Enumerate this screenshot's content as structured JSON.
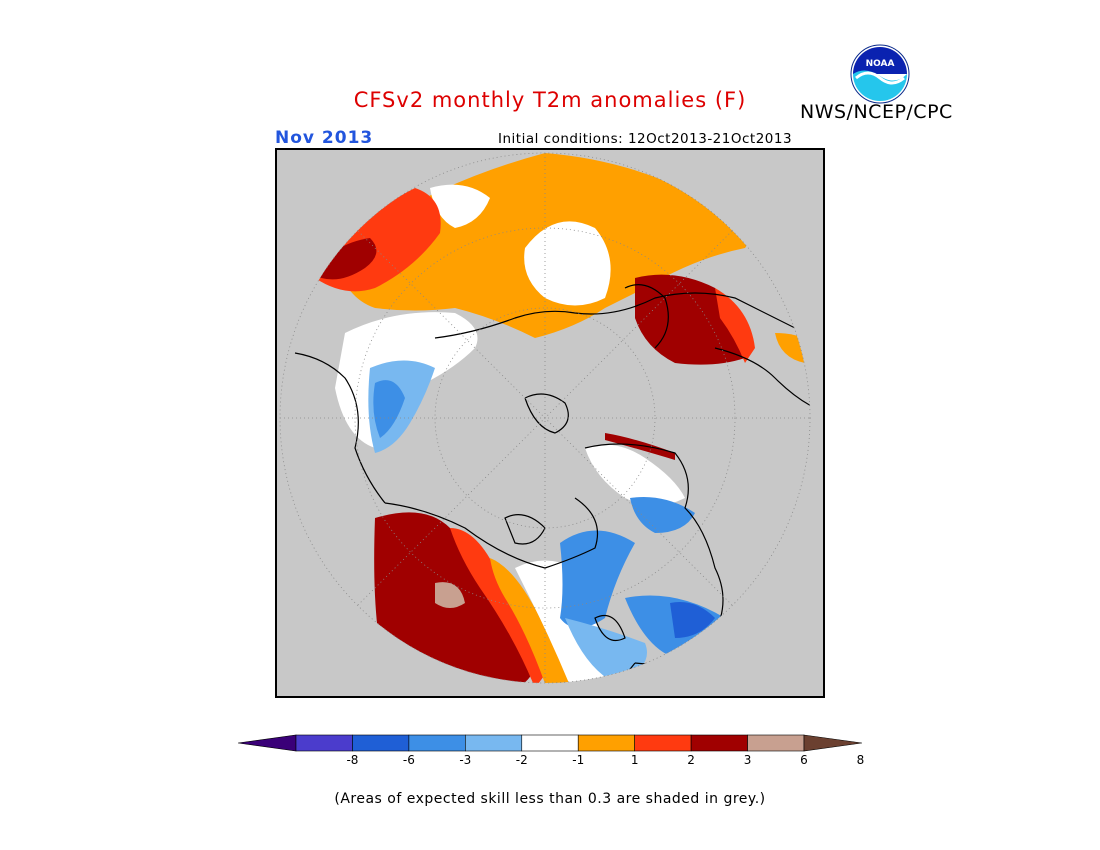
{
  "header": {
    "title": "CFSv2 monthly T2m anomalies (F)",
    "agency": "NWS/NCEP/CPC",
    "logo_text": "NOAA",
    "month": "Nov 2013",
    "initial_conditions": "Initial conditions: 12Oct2013-21Oct2013"
  },
  "colors": {
    "title": "#dd0000",
    "month": "#2255dd",
    "grey": "#c8c8c8",
    "land_white": "#ffffff"
  },
  "legend": {
    "ticks": [
      "-8",
      "-6",
      "-3",
      "-2",
      "-1",
      "1",
      "2",
      "3",
      "6",
      "8"
    ],
    "bins": [
      {
        "label": "< -8",
        "color": "#3a0078"
      },
      {
        "label": "-8 to -6",
        "color": "#4b3ccc"
      },
      {
        "label": "-6 to -3",
        "color": "#1f5fd6"
      },
      {
        "label": "-3 to -2",
        "color": "#3d8fe6"
      },
      {
        "label": "-2 to -1",
        "color": "#78b8f0"
      },
      {
        "label": "-1 to 1",
        "color": "#ffffff"
      },
      {
        "label": "1 to 2",
        "color": "#ffa000"
      },
      {
        "label": "2 to 3",
        "color": "#ff3a10"
      },
      {
        "label": "3 to 6",
        "color": "#a00000"
      },
      {
        "label": "6 to 8",
        "color": "#c8a090"
      },
      {
        "label": "> 8",
        "color": "#6b4030"
      }
    ]
  },
  "note": "(Areas of expected skill less than 0.3 are shaded in grey.)"
}
